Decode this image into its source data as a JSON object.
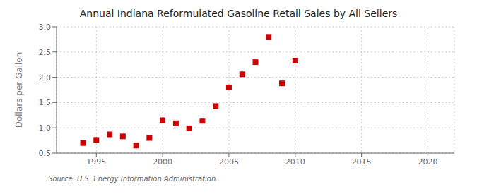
{
  "chart_data": {
    "type": "scatter",
    "title": "Annual Indiana Reformulated Gasoline Retail Sales by All Sellers",
    "y_label": "Dollars per Gallon",
    "annotations": [
      "Source: U.S. Energy Information Administration"
    ],
    "x": [
      1994,
      1995,
      1996,
      1997,
      1998,
      1999,
      2000,
      2001,
      2002,
      2003,
      2004,
      2005,
      2006,
      2007,
      2008,
      2009,
      2010
    ],
    "values": [
      0.7,
      0.76,
      0.87,
      0.83,
      0.65,
      0.8,
      1.15,
      1.09,
      0.99,
      1.14,
      1.43,
      1.8,
      2.06,
      2.3,
      2.8,
      1.88,
      2.33
    ],
    "xlim": [
      1992,
      2022
    ],
    "ylim": [
      0.5,
      3.0
    ],
    "xticks": [
      1995,
      2000,
      2005,
      2010,
      2015,
      2020
    ],
    "yticks": [
      0.5,
      {
        "value": 1,
        "label": "1.0"
      },
      1.5,
      {
        "value": 2,
        "label": "2.0"
      },
      2.5,
      {
        "value": 3,
        "label": "3.0"
      }
    ],
    "color": "#cc0000",
    "marker": "square",
    "grid": true
  }
}
